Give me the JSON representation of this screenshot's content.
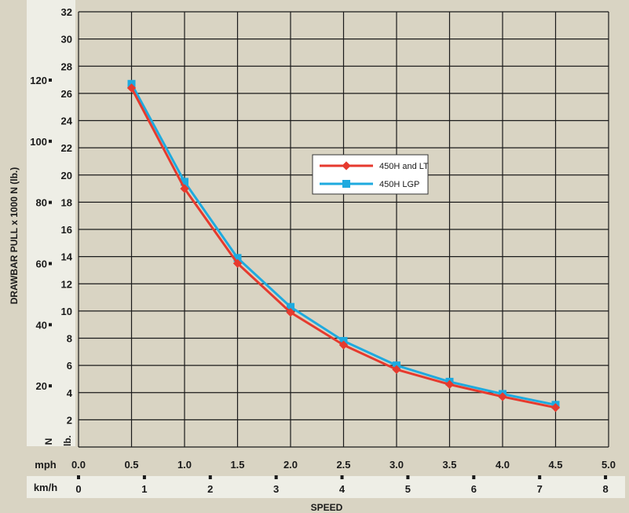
{
  "chart_data": {
    "type": "line",
    "xlabel": "SPEED",
    "ylabel": "DRAWBAR PULL x 1000 N (lb.)",
    "x_unit_primary": "mph",
    "x_unit_secondary": "km/h",
    "y_unit_left": "N",
    "y_unit_right": "lb.",
    "xlim": [
      0,
      5
    ],
    "ylim_lb": [
      0,
      32
    ],
    "x_ticks_mph": [
      "0.0",
      "0.5",
      "1.0",
      "1.5",
      "2.0",
      "2.5",
      "3.0",
      "3.5",
      "4.0",
      "4.5",
      "5.0"
    ],
    "x_ticks_kmh": [
      "0",
      "1",
      "2",
      "3",
      "4",
      "5",
      "6",
      "7",
      "8"
    ],
    "y_ticks_lb": [
      "2",
      "4",
      "6",
      "8",
      "10",
      "12",
      "14",
      "16",
      "18",
      "20",
      "22",
      "24",
      "26",
      "28",
      "30",
      "32"
    ],
    "y_ticks_n": [
      "20",
      "40",
      "60",
      "80",
      "100",
      "120"
    ],
    "grid": true,
    "legend_position": "center-right",
    "series": [
      {
        "name": "450H and LT",
        "color": "#e63a2e",
        "marker": "diamond",
        "x": [
          0.5,
          1.0,
          1.5,
          2.0,
          2.5,
          3.0,
          3.5,
          4.0,
          4.5
        ],
        "y": [
          26.4,
          19.0,
          13.5,
          9.9,
          7.5,
          5.7,
          4.6,
          3.7,
          2.9
        ]
      },
      {
        "name": "450H LGP",
        "color": "#1eaadf",
        "marker": "square",
        "x": [
          0.5,
          1.0,
          1.5,
          2.0,
          2.5,
          3.0,
          3.5,
          4.0,
          4.5
        ],
        "y": [
          26.7,
          19.5,
          13.9,
          10.3,
          7.8,
          6.0,
          4.8,
          3.9,
          3.1
        ]
      }
    ]
  }
}
